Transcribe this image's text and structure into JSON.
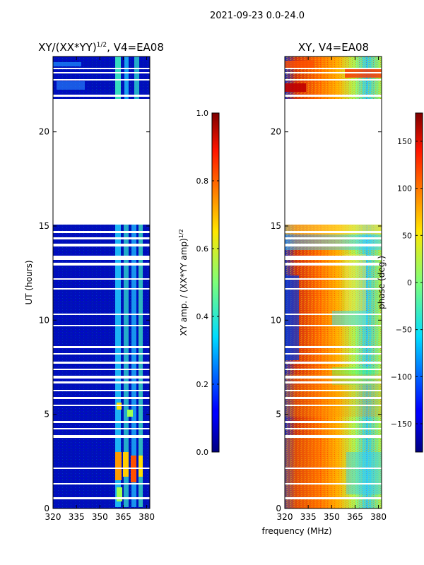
{
  "figure_title": "2021-09-23 0.0-24.0",
  "shared_xlabel": "frequency (MHz)",
  "chart_data": [
    {
      "type": "heatmap",
      "title_main": "XY/(XX*YY)",
      "title_sup": "1/2",
      "title_rest": ", V4=EA08",
      "xlabel": "",
      "ylabel": "UT (hours)",
      "xlim": [
        320,
        382
      ],
      "ylim": [
        0,
        24
      ],
      "xticks": [
        "320",
        "335",
        "350",
        "365",
        "380"
      ],
      "yticks": [
        "0",
        "5",
        "10",
        "15",
        "20"
      ],
      "colorbar": {
        "label_main": "XY amp. / (XX*YY amp)",
        "label_sup": "1/2",
        "range": [
          0,
          1
        ],
        "ticks": [
          "0.0",
          "0.2",
          "0.4",
          "0.6",
          "0.8",
          "1.0"
        ]
      },
      "data_gap_ut": [
        15.1,
        21.8
      ]
    },
    {
      "type": "heatmap",
      "title": "XY, V4=EA08",
      "xlabel": "frequency (MHz)",
      "ylabel": "",
      "xlim": [
        320,
        382
      ],
      "ylim": [
        0,
        24
      ],
      "xticks": [
        "320",
        "335",
        "350",
        "365",
        "380"
      ],
      "yticks": [
        "0",
        "5",
        "10",
        "15",
        "20"
      ],
      "colorbar": {
        "label": "phase (deg.)",
        "range": [
          -180,
          180
        ],
        "ticks": [
          "−150",
          "−100",
          "−50",
          "0",
          "50",
          "100",
          "150"
        ]
      },
      "data_gap_ut": [
        15.1,
        21.8
      ]
    }
  ]
}
